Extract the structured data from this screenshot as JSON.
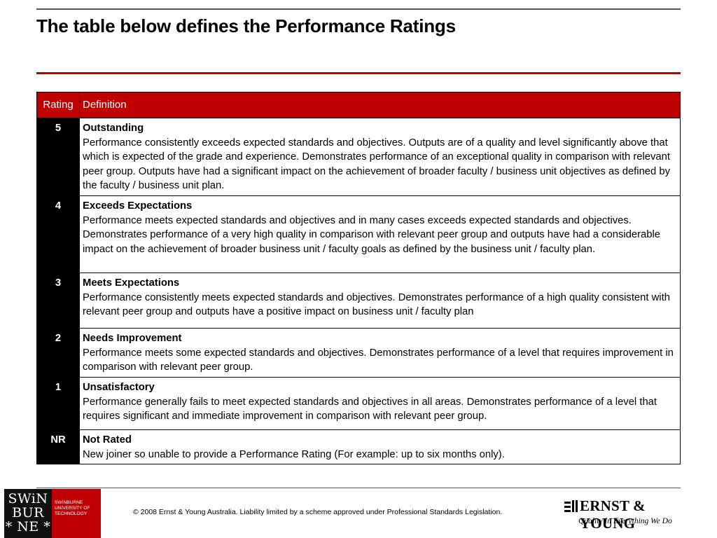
{
  "title": "The table below defines the Performance Ratings",
  "table": {
    "headers": {
      "rating": "Rating",
      "definition": "Definition"
    },
    "rows": [
      {
        "rating": "5",
        "title": "Outstanding",
        "text": "Performance consistently exceeds expected standards and objectives. Outputs are of a quality and level significantly above that which is expected of the grade and experience.  Demonstrates performance of an exceptional quality in comparison with relevant peer group. Outputs have had a significant impact on the achievement of broader faculty / business unit objectives as defined by the faculty / business unit plan."
      },
      {
        "rating": "4",
        "title": "Exceeds Expectations",
        "text": "Performance meets expected standards and objectives and in many cases exceeds expected standards and objectives. Demonstrates performance of a very high quality in comparison with relevant peer group and outputs have had a considerable impact on the achievement of broader business unit / faculty goals as defined by the business unit / faculty plan."
      },
      {
        "rating": "3",
        "title": "Meets Expectations",
        "text": "Performance consistently meets expected standards and objectives. Demonstrates performance of a high quality consistent with relevant peer group and outputs have a positive impact on business unit / faculty plan"
      },
      {
        "rating": "2",
        "title": "Needs Improvement",
        "text": "Performance meets some expected standards and objectives. Demonstrates performance of a level that requires improvement in comparison with relevant peer group."
      },
      {
        "rating": "1",
        "title": "Unsatisfactory",
        "text": "Performance generally fails to meet expected standards and objectives in all areas. Demonstrates performance of a level that requires significant and immediate improvement in comparison with relevant peer group."
      },
      {
        "rating": "NR",
        "title": "Not Rated",
        "text": "New joiner so unable to provide a Performance Rating  (For example: up to six months only)."
      }
    ]
  },
  "footer": {
    "swinburne_mark": [
      "SWiN",
      "BUR",
      "* NE *"
    ],
    "swinburne_name": [
      "SWINBURNE",
      "UNIVERSITY OF",
      "TECHNOLOGY"
    ],
    "copyright": "© 2008 Ernst & Young Australia. Liability limited by a scheme approved under Professional Standards Legislation.",
    "ey_name": "ERNST & YOUNG",
    "ey_tagline": "Quality In Everything We Do"
  },
  "colors": {
    "accent_red": "#c00000",
    "rating_cell": "#000000"
  }
}
